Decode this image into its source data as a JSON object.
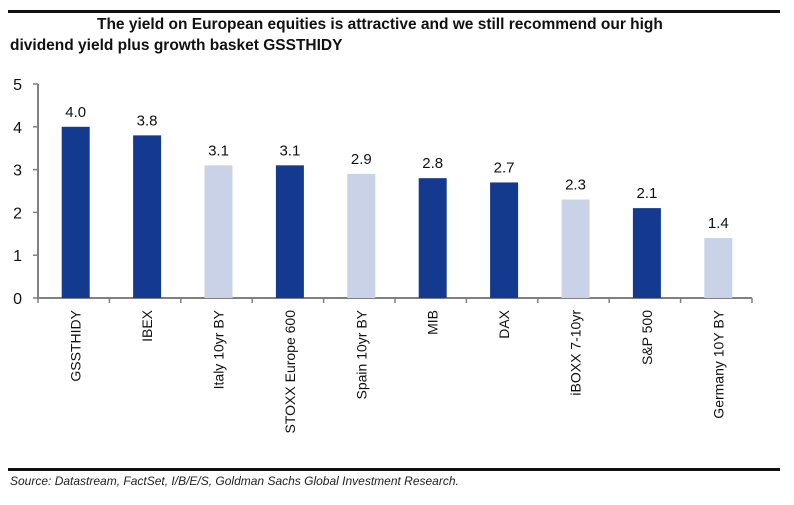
{
  "chart_data": {
    "type": "bar",
    "title": "The yield on European equities is attractive and we still recommend our high dividend yield plus growth basket GSSTHIDY",
    "title_lines": [
      "The yield on European equities is attractive and we still recommend our high",
      "dividend yield plus growth basket GSSTHIDY"
    ],
    "xlabel": "",
    "ylabel": "",
    "ylim": [
      0,
      5
    ],
    "yticks": [
      0,
      1,
      2,
      3,
      4,
      5
    ],
    "grid": false,
    "legend": "none",
    "categories": [
      "GSSTHIDY",
      "IBEX",
      "Italy 10yr BY",
      "STOXX Europe 600",
      "Spain 10yr BY",
      "MIB",
      "DAX",
      "iBOXX 7-10yr",
      "S&P 500",
      "Germany 10Y BY"
    ],
    "values": [
      4.0,
      3.8,
      3.1,
      3.1,
      2.9,
      2.8,
      2.7,
      2.3,
      2.1,
      1.4
    ],
    "data_labels": [
      "4.0",
      "3.8",
      "3.1",
      "3.1",
      "2.9",
      "2.8",
      "2.7",
      "2.3",
      "2.1",
      "1.4"
    ],
    "bar_type": [
      "equity",
      "equity",
      "bond",
      "equity",
      "bond",
      "equity",
      "equity",
      "bond",
      "equity",
      "bond"
    ],
    "colors": {
      "equity": "#143a8f",
      "bond": "#c9d2e6",
      "axis": "#808080",
      "text": "#111111"
    },
    "source": "Source: Datastream, FactSet, I/B/E/S, Goldman Sachs Global Investment Research."
  }
}
